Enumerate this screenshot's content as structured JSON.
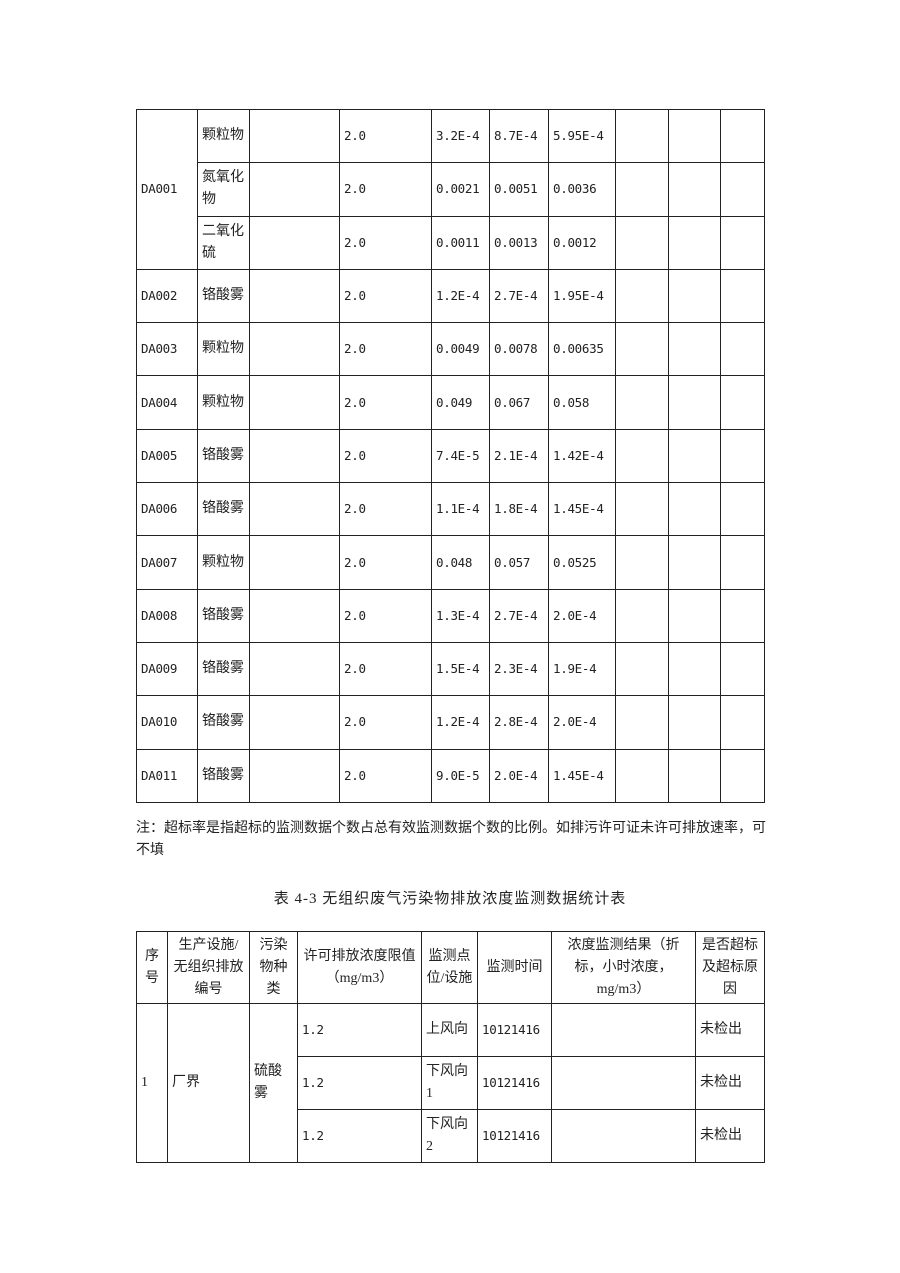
{
  "table1": {
    "rows": [
      {
        "outlet": "DA001",
        "pollutant": "颗粒物",
        "limit": "2.0",
        "min": "3.2E-4",
        "max": "8.7E-4",
        "avg": "5.95E-4"
      },
      {
        "pollutant": "氮氧化物",
        "limit": "2.0",
        "min": "0.0021",
        "max": "0.0051",
        "avg": "0.0036"
      },
      {
        "pollutant": "二氧化硫",
        "limit": "2.0",
        "min": "0.0011",
        "max": "0.0013",
        "avg": "0.0012"
      },
      {
        "outlet": "DA002",
        "pollutant": "铬酸雾",
        "limit": "2.0",
        "min": "1.2E-4",
        "max": "2.7E-4",
        "avg": "1.95E-4"
      },
      {
        "outlet": "DA003",
        "pollutant": "颗粒物",
        "limit": "2.0",
        "min": "0.0049",
        "max": "0.0078",
        "avg": "0.00635"
      },
      {
        "outlet": "DA004",
        "pollutant": "颗粒物",
        "limit": "2.0",
        "min": "0.049",
        "max": "0.067",
        "avg": "0.058"
      },
      {
        "outlet": "DA005",
        "pollutant": "铬酸雾",
        "limit": "2.0",
        "min": "7.4E-5",
        "max": "2.1E-4",
        "avg": "1.42E-4"
      },
      {
        "outlet": "DA006",
        "pollutant": "铬酸雾",
        "limit": "2.0",
        "min": "1.1E-4",
        "max": "1.8E-4",
        "avg": "1.45E-4"
      },
      {
        "outlet": "DA007",
        "pollutant": "颗粒物",
        "limit": "2.0",
        "min": "0.048",
        "max": "0.057",
        "avg": "0.0525"
      },
      {
        "outlet": "DA008",
        "pollutant": "铬酸雾",
        "limit": "2.0",
        "min": "1.3E-4",
        "max": "2.7E-4",
        "avg": "2.0E-4"
      },
      {
        "outlet": "DA009",
        "pollutant": "铬酸雾",
        "limit": "2.0",
        "min": "1.5E-4",
        "max": "2.3E-4",
        "avg": "1.9E-4"
      },
      {
        "outlet": "DA010",
        "pollutant": "铬酸雾",
        "limit": "2.0",
        "min": "1.2E-4",
        "max": "2.8E-4",
        "avg": "2.0E-4"
      },
      {
        "outlet": "DA011",
        "pollutant": "铬酸雾",
        "limit": "2.0",
        "min": "9.0E-5",
        "max": "2.0E-4",
        "avg": "1.45E-4"
      }
    ]
  },
  "note": "注：超标率是指超标的监测数据个数占总有效监测数据个数的比例。如排污许可证未许可排放速率，可不填",
  "caption": "表 4-3 无组织废气污染物排放浓度监测数据统计表",
  "table2": {
    "headers": [
      "序号",
      "生产设施/无组织排放编号",
      "污染物种类",
      "许可排放浓度限值（mg/m3）",
      "监测点位/设施",
      "监测时间",
      "浓度监测结果（折标，小时浓度，mg/m3）",
      "是否超标及超标原因"
    ],
    "no": "1",
    "facility": "厂界",
    "pollutant": "硫酸雾",
    "rows": [
      {
        "limit": "1.2",
        "point": "上风向",
        "time": "10121416",
        "result": "",
        "exceed": "未检出"
      },
      {
        "limit": "1.2",
        "point": "下风向1",
        "time": "10121416",
        "result": "",
        "exceed": "未检出"
      },
      {
        "limit": "1.2",
        "point": "下风向2",
        "time": "10121416",
        "result": "",
        "exceed": "未检出"
      }
    ]
  }
}
